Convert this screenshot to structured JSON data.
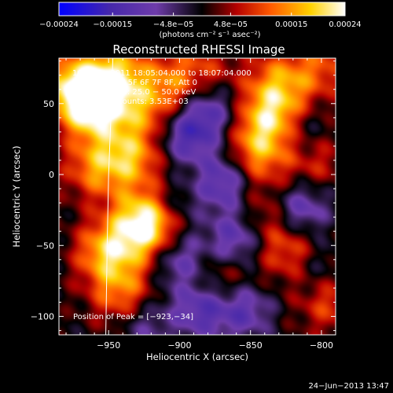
{
  "chart_data": {
    "type": "heatmap",
    "title": "Reconstructed RHESSI Image",
    "xlabel": "Heliocentric X (arcsec)",
    "ylabel": "Heliocentric Y (arcsec)",
    "xlim": [
      -985,
      -790
    ],
    "ylim": [
      -113,
      82
    ],
    "x_ticks": [
      -950,
      -900,
      -850,
      -800
    ],
    "x_tick_labels": [
      "−950",
      "−900",
      "−850",
      "−800"
    ],
    "y_ticks": [
      -100,
      -50,
      0,
      50
    ],
    "y_tick_labels": [
      "−100",
      "−50",
      "0",
      "50"
    ],
    "colorbar": {
      "range": [
        -0.00024,
        0.00024
      ],
      "ticks": [
        -0.00024,
        -0.00015,
        -4.8e-05,
        4.8e-05,
        0.00015,
        0.00024
      ],
      "tick_labels": [
        "−0.00024",
        "−0.00015",
        "−4.8e−05",
        "4.8e−05",
        "0.00015",
        "0.00024"
      ],
      "unit_label": "(photons cm⁻² s⁻¹ asec⁻²)",
      "colors": [
        "#0000ff",
        "#4a2aa0",
        "#6a3ca0",
        "#000000",
        "#c00000",
        "#ff6000",
        "#ffd000",
        "#ffffff"
      ]
    },
    "annotations": [
      "10−Sep−2011 18:05:04.000 to 18:07:04.000",
      "Detectors: 3F 5F 6F 7F 8F, Att 0",
      "Energy Range: 25.0 − 50.0 keV",
      "Clean    Total counts: 3.53E+03"
    ],
    "peak_label": "Position of Peak = [−923,−34]",
    "peak": {
      "x": -923,
      "y": -34
    },
    "sources": [
      {
        "x": -960,
        "y": 48,
        "amp": 1.6
      },
      {
        "x": -945,
        "y": 70,
        "amp": 1.2
      },
      {
        "x": -975,
        "y": 62,
        "amp": 1.3
      },
      {
        "x": -935,
        "y": 12,
        "amp": 1.1
      },
      {
        "x": -960,
        "y": 5,
        "amp": 0.9
      },
      {
        "x": -923,
        "y": -34,
        "amp": 2.0
      },
      {
        "x": -950,
        "y": -55,
        "amp": 1.3
      },
      {
        "x": -940,
        "y": -85,
        "amp": 0.9
      },
      {
        "x": -905,
        "y": 65,
        "amp": 0.8
      },
      {
        "x": -925,
        "y": 45,
        "amp": 0.7
      },
      {
        "x": -835,
        "y": 40,
        "amp": 1.3
      },
      {
        "x": -830,
        "y": 65,
        "amp": 0.9
      },
      {
        "x": -845,
        "y": 15,
        "amp": 1.0
      },
      {
        "x": -800,
        "y": 75,
        "amp": 0.7
      },
      {
        "x": -805,
        "y": 10,
        "amp": 0.6
      },
      {
        "x": -820,
        "y": -55,
        "amp": 0.9
      },
      {
        "x": -840,
        "y": -30,
        "amp": 0.6
      },
      {
        "x": -795,
        "y": -90,
        "amp": 0.7
      },
      {
        "x": -870,
        "y": -75,
        "amp": 0.6
      },
      {
        "x": -880,
        "y": 75,
        "amp": 0.5
      },
      {
        "x": -895,
        "y": -5,
        "amp": 0.3
      }
    ],
    "negatives": [
      {
        "x": -895,
        "y": 25,
        "amp": 1.0
      },
      {
        "x": -870,
        "y": -5,
        "amp": 1.1
      },
      {
        "x": -880,
        "y": 45,
        "amp": 0.9
      },
      {
        "x": -860,
        "y": -45,
        "amp": 1.0
      },
      {
        "x": -900,
        "y": -60,
        "amp": 0.8
      },
      {
        "x": -885,
        "y": -95,
        "amp": 1.0
      },
      {
        "x": -815,
        "y": -25,
        "amp": 1.0
      },
      {
        "x": -855,
        "y": -95,
        "amp": 0.9
      },
      {
        "x": -905,
        "y": -20,
        "amp": 0.7
      },
      {
        "x": -815,
        "y": 30,
        "amp": 0.6
      },
      {
        "x": -925,
        "y": -105,
        "amp": 0.6
      },
      {
        "x": -805,
        "y": -65,
        "amp": 0.6
      }
    ]
  },
  "contour_line": {
    "points": [
      [
        -947,
        82
      ],
      [
        -948,
        50
      ],
      [
        -950,
        0
      ],
      [
        -951,
        -50
      ],
      [
        -952,
        -113
      ]
    ]
  },
  "timestamp": "24−Jun−2013 13:47"
}
